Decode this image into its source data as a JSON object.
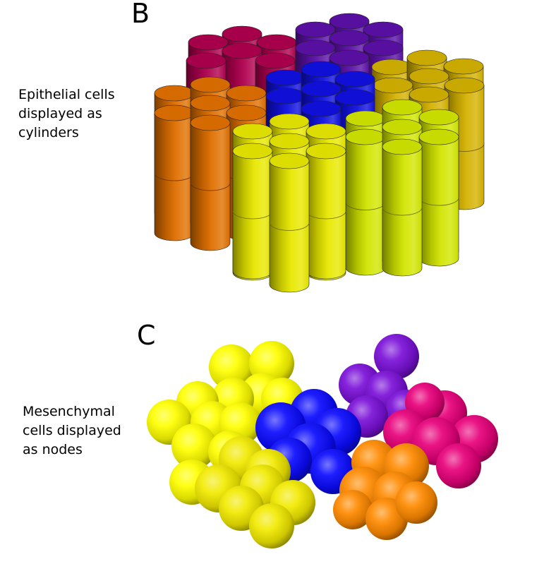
{
  "panel_b": {
    "letter": "B",
    "caption": "Epithelial cells\ndisplayed as\ncylinders"
  },
  "panel_c": {
    "letter": "C",
    "caption": "Mesenchymal\ncells displayed\nas nodes"
  },
  "colors": {
    "magenta": "#b0004f",
    "purple": "#5c10a8",
    "blue": "#1010e0",
    "orange": "#e07000",
    "gold": "#d4b200",
    "yellow": "#e8e800",
    "yellow_green": "#d2e600",
    "pink": "#e8007a",
    "violet": "#7a10d8",
    "bright_blue": "#0a0aff",
    "bright_orange": "#ff8a00",
    "bright_yellow": "#ffff00",
    "mid_yellow": "#f2ea00"
  }
}
